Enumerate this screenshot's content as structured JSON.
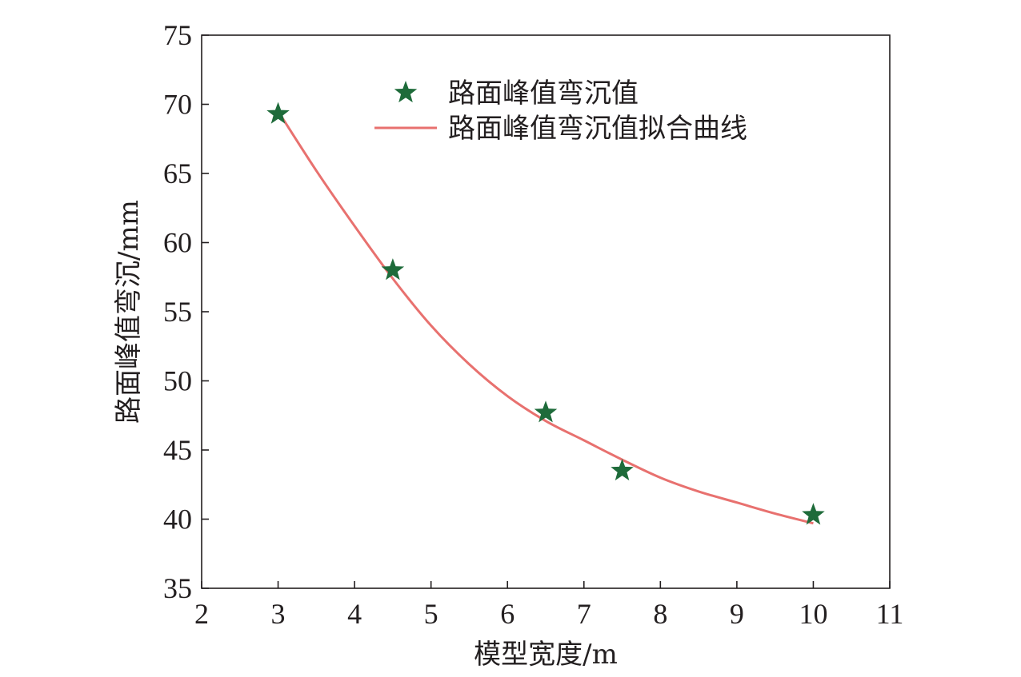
{
  "chart_data": {
    "type": "scatter",
    "xlabel": "模型宽度/m",
    "ylabel": "路面峰值弯沉/mm",
    "xlim": [
      2,
      11
    ],
    "ylim": [
      35,
      75
    ],
    "xticks": [
      "2",
      "3",
      "4",
      "5",
      "6",
      "7",
      "8",
      "9",
      "10",
      "11"
    ],
    "yticks": [
      "35",
      "40",
      "45",
      "50",
      "55",
      "60",
      "65",
      "70",
      "75"
    ],
    "grid": false,
    "legend_position": "top-center",
    "series": [
      {
        "name": "路面峰值弯沉值",
        "type": "scatter",
        "marker": "star",
        "color": "#1e6b3a",
        "x": [
          3,
          4.5,
          6.5,
          7.5,
          10
        ],
        "y": [
          69.3,
          58.0,
          47.7,
          43.5,
          40.3
        ]
      },
      {
        "name": "路面峰值弯沉值拟合曲线",
        "type": "line",
        "color": "#e8716f",
        "x": [
          3,
          3.5,
          4,
          4.5,
          5,
          5.5,
          6,
          6.5,
          7,
          7.5,
          8,
          8.5,
          9,
          9.5,
          10
        ],
        "y": [
          69.5,
          65.2,
          61.2,
          57.4,
          54.0,
          51.2,
          48.9,
          47.1,
          45.7,
          44.3,
          43.0,
          42.0,
          41.2,
          40.4,
          39.7
        ]
      }
    ]
  }
}
